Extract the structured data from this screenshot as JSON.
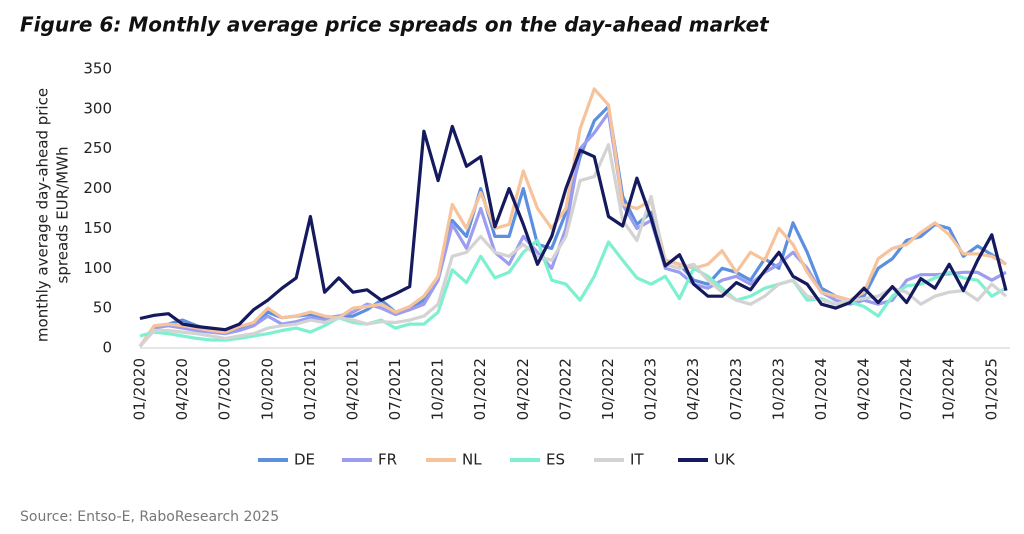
{
  "chart_data": {
    "type": "line",
    "title": "Figure 6: Monthly average price spreads on the day-ahead market",
    "y_label": [
      "monthly average day-ahead price",
      "spreads EUR/MWh"
    ],
    "source": "Source: Entso-E, RaboResearch 2025",
    "categories": [
      "01/2020",
      null,
      null,
      "04/2020",
      null,
      null,
      "07/2020",
      null,
      null,
      "10/2020",
      null,
      null,
      "01/2021",
      null,
      null,
      "04/2021",
      null,
      null,
      "07/2021",
      null,
      null,
      "10/2021",
      null,
      null,
      "01/2022",
      null,
      null,
      "04/2022",
      null,
      null,
      "07/2022",
      null,
      null,
      "10/2022",
      null,
      null,
      "01/2023",
      null,
      null,
      "04/2023",
      null,
      null,
      "07/2023",
      null,
      null,
      "10/2023",
      null,
      null,
      "01/2024",
      null,
      null,
      "04/2024",
      null,
      null,
      "07/2024",
      null,
      null,
      "10/2024",
      null,
      null,
      "01/2025",
      null
    ],
    "series": [
      {
        "name": "DE",
        "color": "#5b8fe0",
        "values": [
          2,
          25,
          30,
          35,
          28,
          22,
          20,
          25,
          30,
          45,
          38,
          40,
          42,
          38,
          40,
          40,
          48,
          60,
          45,
          50,
          60,
          90,
          160,
          140,
          200,
          140,
          140,
          200,
          130,
          125,
          170,
          240,
          285,
          303,
          190,
          155,
          170,
          110,
          105,
          85,
          80,
          100,
          95,
          85,
          112,
          100,
          157,
          120,
          75,
          65,
          60,
          65,
          100,
          112,
          135,
          140,
          155,
          150,
          115,
          128,
          117,
          105
        ]
      },
      {
        "name": "FR",
        "color": "#9c9cf0",
        "values": [
          2,
          25,
          28,
          25,
          22,
          20,
          18,
          22,
          28,
          40,
          30,
          33,
          38,
          35,
          40,
          45,
          55,
          50,
          42,
          48,
          55,
          85,
          155,
          125,
          175,
          120,
          105,
          140,
          120,
          100,
          150,
          250,
          270,
          295,
          180,
          150,
          160,
          100,
          95,
          80,
          75,
          85,
          90,
          80,
          95,
          105,
          120,
          100,
          70,
          60,
          55,
          60,
          55,
          60,
          85,
          92,
          92,
          93,
          95,
          95,
          85,
          95
        ]
      },
      {
        "name": "NL",
        "color": "#f7c39b",
        "values": [
          2,
          28,
          30,
          28,
          25,
          22,
          20,
          27,
          32,
          50,
          38,
          40,
          45,
          40,
          38,
          50,
          52,
          55,
          45,
          52,
          65,
          90,
          180,
          150,
          195,
          150,
          155,
          222,
          175,
          150,
          175,
          275,
          325,
          305,
          180,
          175,
          185,
          110,
          105,
          100,
          105,
          122,
          95,
          120,
          110,
          150,
          130,
          95,
          70,
          65,
          60,
          70,
          112,
          125,
          130,
          145,
          157,
          142,
          118,
          118,
          115,
          105
        ]
      },
      {
        "name": "ES",
        "color": "#7df0d0",
        "values": [
          15,
          20,
          18,
          15,
          12,
          10,
          10,
          12,
          15,
          18,
          22,
          25,
          20,
          28,
          38,
          32,
          30,
          35,
          25,
          30,
          30,
          45,
          98,
          82,
          115,
          88,
          95,
          120,
          135,
          85,
          80,
          60,
          90,
          133,
          110,
          88,
          80,
          90,
          62,
          100,
          90,
          75,
          60,
          65,
          75,
          80,
          85,
          60,
          62,
          55,
          58,
          52,
          40,
          65,
          78,
          80,
          88,
          95,
          88,
          85,
          65,
          75
        ]
      },
      {
        "name": "IT",
        "color": "#d3d3d3",
        "values": [
          2,
          22,
          22,
          20,
          18,
          15,
          12,
          15,
          18,
          25,
          28,
          30,
          35,
          32,
          38,
          35,
          30,
          33,
          32,
          35,
          40,
          55,
          115,
          120,
          140,
          120,
          115,
          130,
          115,
          110,
          140,
          210,
          215,
          255,
          160,
          135,
          190,
          105,
          100,
          105,
          85,
          70,
          60,
          55,
          65,
          80,
          85,
          65,
          60,
          55,
          60,
          62,
          65,
          75,
          70,
          55,
          65,
          70,
          72,
          60,
          80,
          65
        ]
      },
      {
        "name": "UK",
        "color": "#15195e",
        "values": [
          37,
          41,
          43,
          30,
          27,
          25,
          23,
          30,
          48,
          60,
          75,
          88,
          165,
          70,
          88,
          70,
          73,
          60,
          68,
          77,
          272,
          210,
          278,
          228,
          240,
          152,
          200,
          155,
          105,
          140,
          200,
          248,
          240,
          165,
          153,
          213,
          163,
          103,
          117,
          80,
          65,
          65,
          82,
          73,
          97,
          120,
          90,
          80,
          55,
          50,
          57,
          75,
          57,
          77,
          57,
          87,
          75,
          105,
          72,
          110,
          142,
          72
        ]
      }
    ],
    "ylim": [
      0,
      350
    ],
    "yticks": [
      0,
      50,
      100,
      150,
      200,
      250,
      300,
      350
    ],
    "grid": false
  }
}
